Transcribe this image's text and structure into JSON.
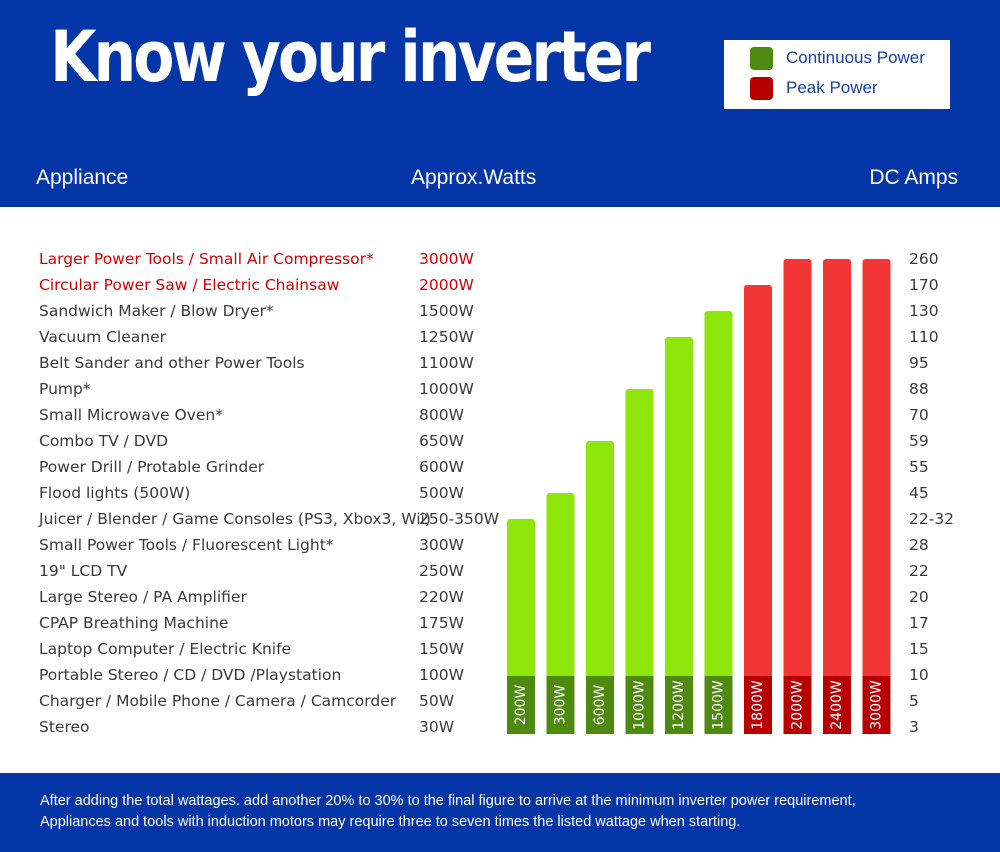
{
  "title": "Know your inverter",
  "legend": {
    "continuous": {
      "label": "Continuous Power",
      "color": "#4f8a10"
    },
    "peak": {
      "label": "Peak Power",
      "color": "#b80000"
    }
  },
  "columns": {
    "appliance": "Appliance",
    "watts": "Approx.Watts",
    "amps": "DC Amps"
  },
  "colors": {
    "header_bg": "#0436a8",
    "bar_continuous": "#8ee60a",
    "bar_peak": "#f23535",
    "base_continuous": "#4f8a10",
    "base_peak": "#b80000",
    "highlight_text": "#d40000"
  },
  "rows": [
    {
      "appliance": "Larger Power Tools / Small Air Compressor*",
      "watts": "3000W",
      "amps": "260",
      "highlight": true
    },
    {
      "appliance": "Circular Power Saw / Electric Chainsaw",
      "watts": "2000W",
      "amps": "170",
      "highlight": true
    },
    {
      "appliance": "Sandwich Maker / Blow Dryer*",
      "watts": "1500W",
      "amps": "130",
      "highlight": false
    },
    {
      "appliance": "Vacuum Cleaner",
      "watts": "1250W",
      "amps": "110",
      "highlight": false
    },
    {
      "appliance": "Belt Sander and other Power Tools",
      "watts": "1100W",
      "amps": "95",
      "highlight": false
    },
    {
      "appliance": "Pump*",
      "watts": "1000W",
      "amps": "88",
      "highlight": false
    },
    {
      "appliance": "Small Microwave Oven*",
      "watts": "800W",
      "amps": "70",
      "highlight": false
    },
    {
      "appliance": "Combo TV / DVD",
      "watts": "650W",
      "amps": "59",
      "highlight": false
    },
    {
      "appliance": "Power Drill / Protable Grinder",
      "watts": "600W",
      "amps": "55",
      "highlight": false
    },
    {
      "appliance": "Flood lights (500W)",
      "watts": "500W",
      "amps": "45",
      "highlight": false
    },
    {
      "appliance": "Juicer / Blender / Game Consoles (PS3, Xbox3, Wii)",
      "watts": "250-350W",
      "amps": "22-32",
      "highlight": false
    },
    {
      "appliance": "Small Power Tools / Fluorescent Light*",
      "watts": "300W",
      "amps": "28",
      "highlight": false
    },
    {
      "appliance": "19\" LCD TV",
      "watts": "250W",
      "amps": "22",
      "highlight": false
    },
    {
      "appliance": "Large Stereo / PA Amplifier",
      "watts": "220W",
      "amps": "20",
      "highlight": false
    },
    {
      "appliance": "CPAP Breathing Machine",
      "watts": "175W",
      "amps": "17",
      "highlight": false
    },
    {
      "appliance": "Laptop Computer / Electric Knife",
      "watts": "150W",
      "amps": "15",
      "highlight": false
    },
    {
      "appliance": "Portable Stereo / CD / DVD /Playstation",
      "watts": "100W",
      "amps": "10",
      "highlight": false
    },
    {
      "appliance": "Charger / Mobile Phone / Camera / Camcorder",
      "watts": "50W",
      "amps": "5",
      "highlight": false
    },
    {
      "appliance": "Stereo",
      "watts": "30W",
      "amps": "3",
      "highlight": false
    }
  ],
  "chart_data": {
    "type": "bar",
    "categories": [
      "200W",
      "300W",
      "600W",
      "1000W",
      "1200W",
      "1500W",
      "1800W",
      "2000W",
      "2400W",
      "3000W"
    ],
    "values": [
      200,
      300,
      600,
      1000,
      1200,
      1500,
      1800,
      2000,
      2400,
      3000
    ],
    "kind": [
      "continuous",
      "continuous",
      "continuous",
      "continuous",
      "continuous",
      "continuous",
      "peak",
      "peak",
      "peak",
      "peak"
    ],
    "bar_labels": [
      "200W",
      "300W",
      "600W",
      "1000W",
      "1200W",
      "1500W",
      "1800W",
      "2000W",
      "2400W",
      "3000W"
    ],
    "row_levels": [
      "3000W",
      "2000W",
      "1500W",
      "1250W",
      "1100W",
      "1000W",
      "800W",
      "650W",
      "600W",
      "500W",
      "250-350W",
      "300W",
      "250W",
      "220W",
      "175W",
      "150W",
      "100W",
      "50W",
      "30W"
    ],
    "bar_top_level": [
      "250-350W",
      "500W",
      "650W",
      "1000W",
      "1250W",
      "1500W",
      "2000W",
      "3000W",
      "3000W",
      "3000W"
    ],
    "legend": [
      "Continuous Power",
      "Peak Power"
    ],
    "title": "",
    "xlabel": "",
    "ylabel": ""
  },
  "footer": {
    "line1": "After adding the total wattages. add another 20% to 30% to the final figure to arrive at the minimum inverter power requirement,",
    "line2": "Appliances and tools with induction motors may require three to seven times the listed wattage when starting."
  }
}
